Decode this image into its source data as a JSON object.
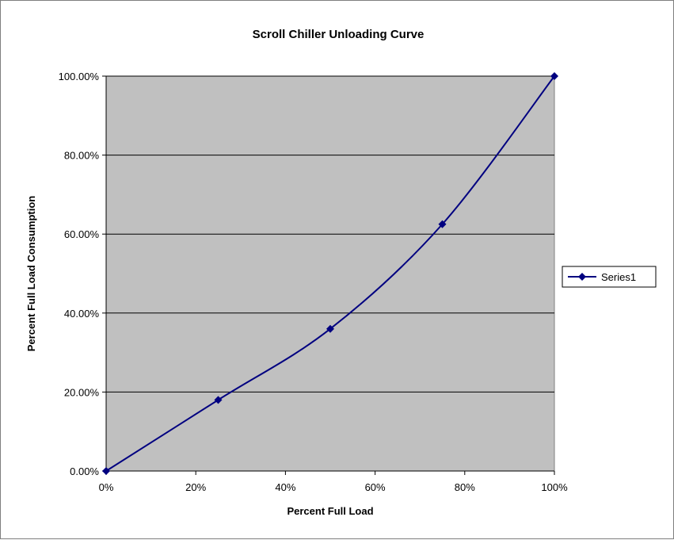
{
  "chart_data": {
    "type": "line",
    "title": "Scroll Chiller Unloading Curve",
    "xlabel": "Percent Full Load",
    "ylabel": "Percent Full Load Consumption",
    "x": [
      0,
      25,
      50,
      75,
      100
    ],
    "xlim": [
      0,
      100
    ],
    "ylim": [
      0,
      100
    ],
    "x_ticks": [
      0,
      20,
      40,
      60,
      80,
      100
    ],
    "x_tick_labels": [
      "0%",
      "20%",
      "40%",
      "60%",
      "80%",
      "100%"
    ],
    "y_ticks": [
      0,
      20,
      40,
      60,
      80,
      100
    ],
    "y_tick_labels": [
      "0.00%",
      "20.00%",
      "40.00%",
      "60.00%",
      "80.00%",
      "100.00%"
    ],
    "series": [
      {
        "name": "Series1",
        "values": [
          0,
          18,
          36,
          62.5,
          100
        ]
      }
    ],
    "colors": {
      "series": "#000080",
      "plot_bg": "#c0c0c0",
      "grid": "#000000"
    },
    "marker": "diamond",
    "smooth": true,
    "grid": "horizontal",
    "legend_position": "right"
  }
}
